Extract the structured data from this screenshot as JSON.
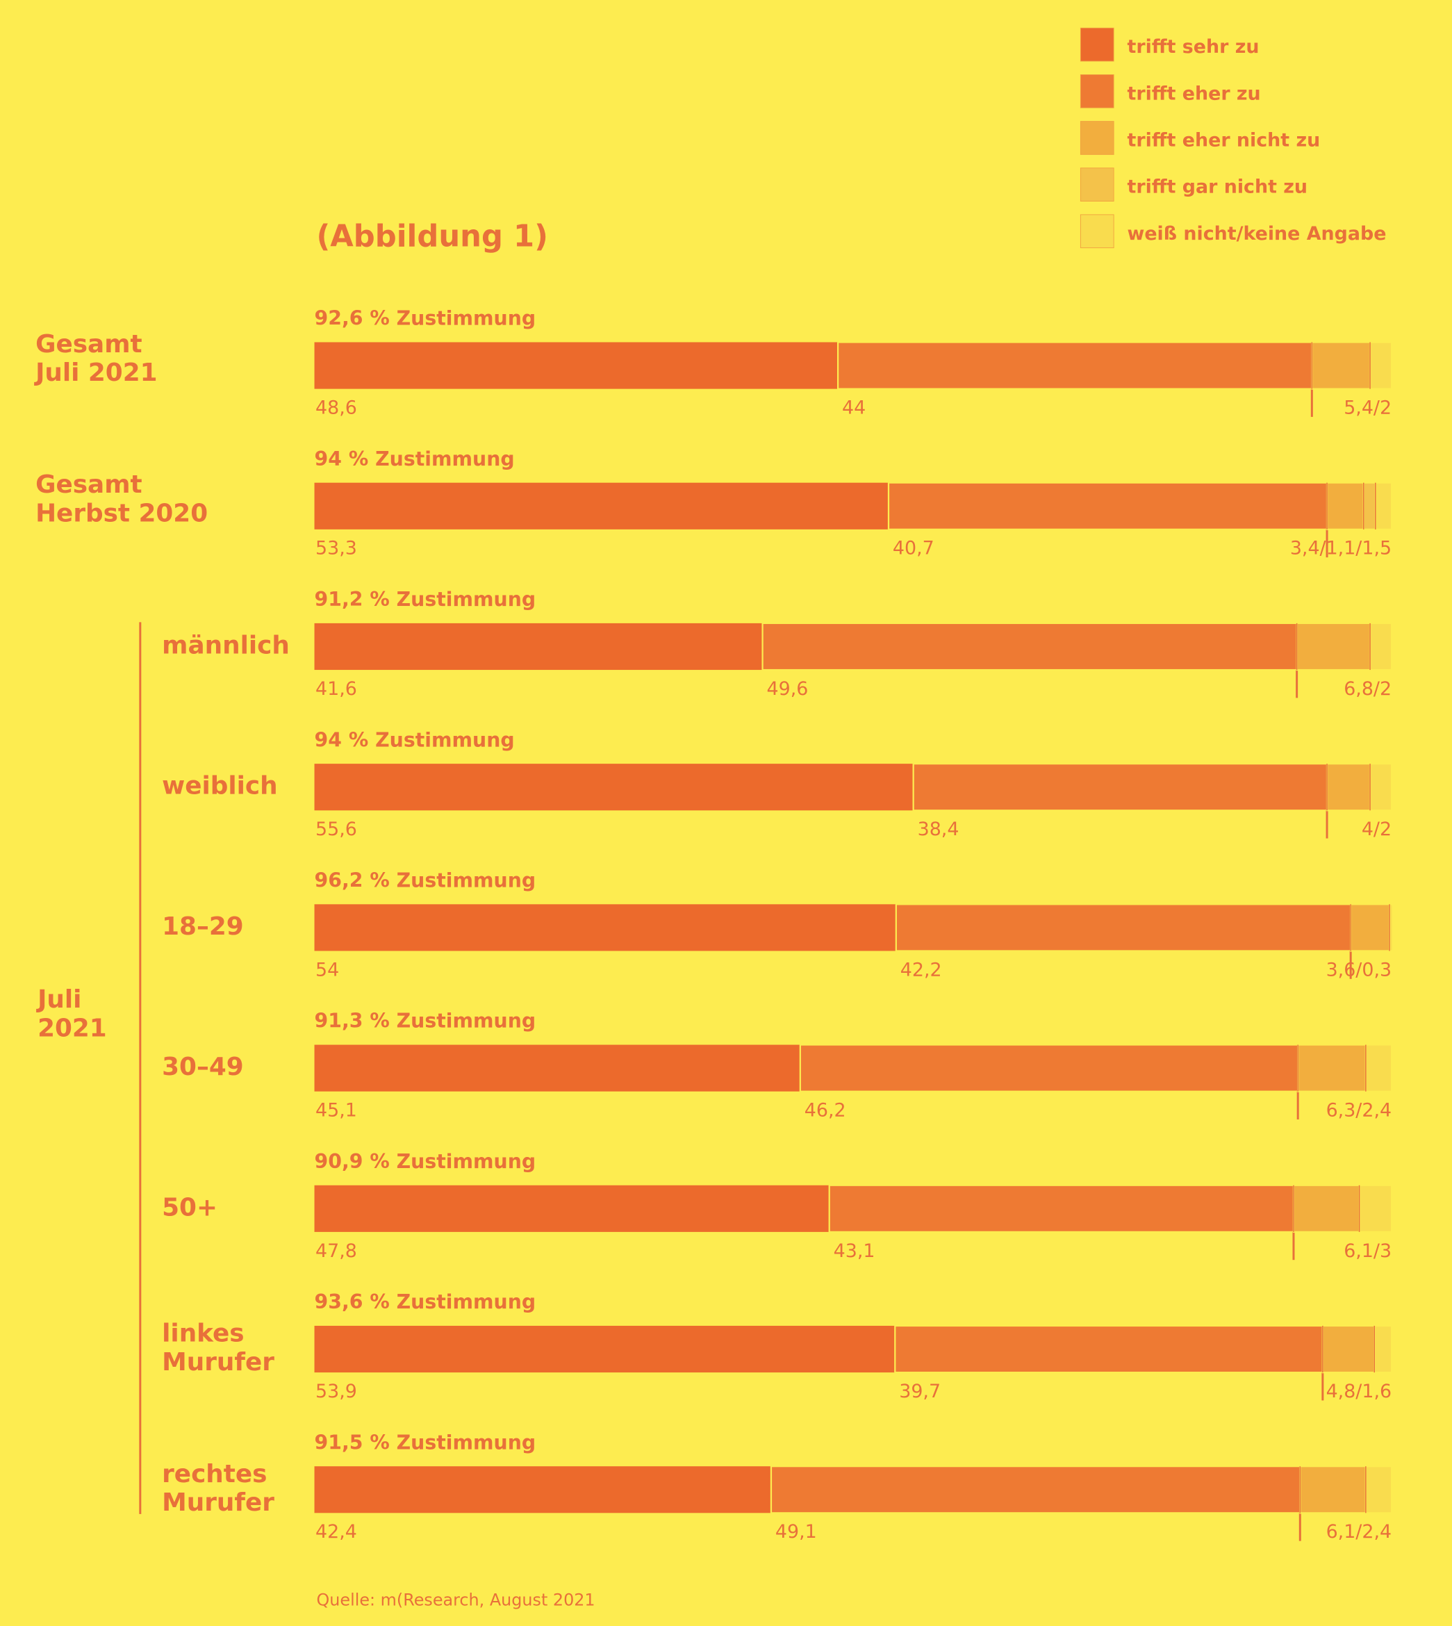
{
  "chart_data": {
    "type": "stacked-bar-horizontal",
    "title": "(Abbildung 1)",
    "source": "Quelle: m(Research, August 2021",
    "group_label": "Juli\n2021",
    "categories": [
      "Gesamt\nJuli 2021",
      "Gesamt\nHerbst 2020",
      "männlich",
      "weiblich",
      "18–29",
      "30–49",
      "50+",
      "linkes\nMurufer",
      "rechtes\nMurufer"
    ],
    "annotations": [
      "92,6 % Zustimmung",
      "94 % Zustimmung",
      "91,2 % Zustimmung",
      "94 % Zustimmung",
      "96,2 % Zustimmung",
      "91,3 % Zustimmung",
      "90,9 % Zustimmung",
      "93,6 % Zustimmung",
      "91,5 % Zustimmung"
    ],
    "xlim": [
      0,
      100
    ],
    "series": [
      {
        "name": "trifft sehr zu",
        "color": "#ec6a2c",
        "values": [
          48.6,
          53.3,
          41.6,
          55.6,
          54,
          45.1,
          47.8,
          53.9,
          42.4
        ],
        "value_labels": [
          "48,6",
          "53,3",
          "41,6",
          "55,6",
          "54",
          "45,1",
          "47,8",
          "53,9",
          "42,4"
        ]
      },
      {
        "name": "trifft eher zu",
        "color": "#ee7a33",
        "values": [
          44,
          40.7,
          49.6,
          38.4,
          42.2,
          46.2,
          43.1,
          39.7,
          49.1
        ],
        "value_labels": [
          "44",
          "40,7",
          "49,6",
          "38,4",
          "42,2",
          "46,2",
          "43,1",
          "39,7",
          "49,1"
        ]
      },
      {
        "name": "trifft eher nicht zu",
        "color": "#f2ae3e",
        "values": [
          5.4,
          3.4,
          6.8,
          4,
          3.6,
          6.3,
          6.1,
          4.8,
          6.1
        ]
      },
      {
        "name": "trifft gar nicht zu",
        "color": "#f4c24a",
        "values": [
          null,
          1.1,
          null,
          null,
          null,
          null,
          null,
          null,
          null
        ]
      },
      {
        "name": "weiß nicht/keine Angabe",
        "color": "#f9dc4e",
        "values": [
          2,
          1.5,
          2,
          2,
          0.3,
          2.4,
          3,
          1.6,
          2.4
        ]
      }
    ],
    "tail_labels": [
      "5,4/2",
      "3,4/1,1/1,5",
      "6,8/2",
      "4/2",
      "3,6/0,3",
      "6,3/2,4",
      "6,1/3",
      "4,8/1,6",
      "6,1/2,4"
    ]
  }
}
